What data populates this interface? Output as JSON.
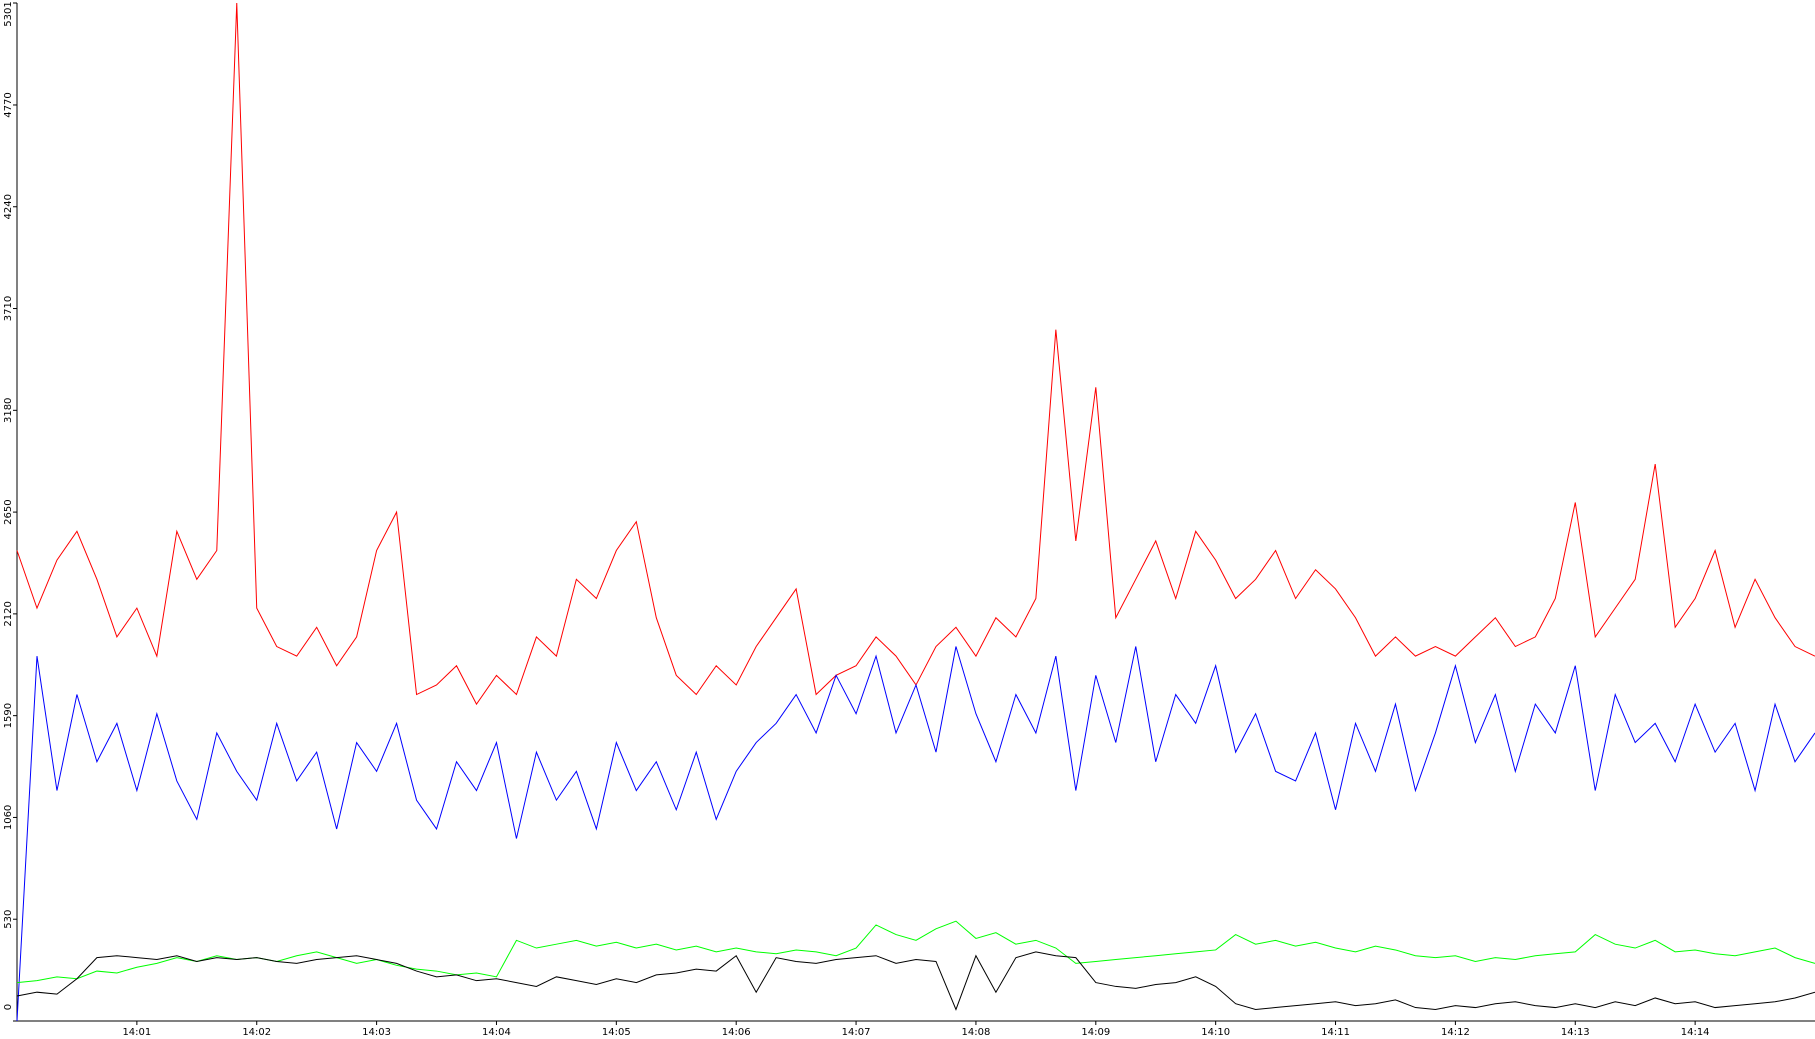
{
  "chart_data": {
    "type": "line",
    "categories": [
      null,
      null,
      null,
      null,
      null,
      null,
      "14:01",
      null,
      null,
      null,
      null,
      null,
      "14:02",
      null,
      null,
      null,
      null,
      null,
      "14:03",
      null,
      null,
      null,
      null,
      null,
      "14:04",
      null,
      null,
      null,
      null,
      null,
      "14:05",
      null,
      null,
      null,
      null,
      null,
      "14:06",
      null,
      null,
      null,
      null,
      null,
      "14:07",
      null,
      null,
      null,
      null,
      null,
      "14:08",
      null,
      null,
      null,
      null,
      null,
      "14:09",
      null,
      null,
      null,
      null,
      null,
      "14:10",
      null,
      null,
      null,
      null,
      null,
      "14:11",
      null,
      null,
      null,
      null,
      null,
      "14:12",
      null,
      null,
      null,
      null,
      null,
      "14:13",
      null,
      null,
      null,
      null,
      null,
      "14:14",
      null,
      null,
      null,
      null,
      null,
      null
    ],
    "series": [
      {
        "color": "#ff0000",
        "values": [
          2450,
          2150,
          2400,
          2550,
          2300,
          2000,
          2150,
          1900,
          2550,
          2300,
          2450,
          5301,
          2150,
          1950,
          1900,
          2050,
          1850,
          2000,
          2450,
          2650,
          1700,
          1750,
          1850,
          1650,
          1800,
          1700,
          2000,
          1900,
          2300,
          2200,
          2450,
          2600,
          2100,
          1800,
          1700,
          1850,
          1750,
          1950,
          2100,
          2250,
          1700,
          1800,
          1850,
          2000,
          1900,
          1750,
          1950,
          2050,
          1900,
          2100,
          2000,
          2200,
          3600,
          2500,
          3300,
          2100,
          2300,
          2500,
          2200,
          2550,
          2400,
          2200,
          2300,
          2450,
          2200,
          2350,
          2250,
          2100,
          1900,
          2000,
          1900,
          1950,
          1900,
          2000,
          2100,
          1950,
          2000,
          2200,
          2700,
          2000,
          2150,
          2300,
          2900,
          2050,
          2200,
          2450,
          2050,
          2300,
          2100,
          1950,
          1900
        ]
      },
      {
        "color": "#0000ff",
        "values": [
          0,
          1900,
          1200,
          1700,
          1350,
          1550,
          1200,
          1600,
          1250,
          1050,
          1500,
          1300,
          1150,
          1550,
          1250,
          1400,
          1000,
          1450,
          1300,
          1550,
          1150,
          1000,
          1350,
          1200,
          1450,
          950,
          1400,
          1150,
          1300,
          1000,
          1450,
          1200,
          1350,
          1100,
          1400,
          1050,
          1300,
          1450,
          1550,
          1700,
          1500,
          1800,
          1600,
          1900,
          1500,
          1750,
          1400,
          1950,
          1600,
          1350,
          1700,
          1500,
          1900,
          1200,
          1800,
          1450,
          1950,
          1350,
          1700,
          1550,
          1850,
          1400,
          1600,
          1300,
          1250,
          1500,
          1100,
          1550,
          1300,
          1650,
          1200,
          1500,
          1850,
          1450,
          1700,
          1300,
          1650,
          1500,
          1850,
          1200,
          1700,
          1450,
          1550,
          1350,
          1650,
          1400,
          1550,
          1200,
          1650,
          1350,
          1500
        ]
      },
      {
        "color": "#00ff00",
        "values": [
          200,
          210,
          230,
          220,
          260,
          250,
          280,
          300,
          330,
          310,
          340,
          320,
          330,
          310,
          340,
          360,
          330,
          300,
          320,
          290,
          270,
          260,
          240,
          250,
          230,
          420,
          380,
          400,
          420,
          390,
          410,
          380,
          400,
          370,
          390,
          360,
          380,
          360,
          350,
          370,
          360,
          340,
          380,
          500,
          450,
          420,
          480,
          520,
          430,
          460,
          400,
          420,
          380,
          300,
          310,
          320,
          330,
          340,
          350,
          360,
          370,
          450,
          400,
          420,
          390,
          410,
          380,
          360,
          390,
          370,
          340,
          330,
          340,
          310,
          330,
          320,
          340,
          350,
          360,
          450,
          400,
          380,
          420,
          360,
          370,
          350,
          340,
          360,
          380,
          330,
          300
        ]
      },
      {
        "color": "#000000",
        "values": [
          130,
          150,
          140,
          220,
          330,
          340,
          330,
          320,
          340,
          310,
          330,
          320,
          330,
          310,
          300,
          320,
          330,
          340,
          320,
          300,
          260,
          230,
          240,
          210,
          220,
          200,
          180,
          230,
          210,
          190,
          220,
          200,
          240,
          250,
          270,
          260,
          340,
          150,
          330,
          310,
          300,
          320,
          330,
          340,
          300,
          320,
          310,
          60,
          340,
          150,
          330,
          360,
          340,
          330,
          200,
          180,
          170,
          190,
          200,
          230,
          180,
          90,
          60,
          70,
          80,
          90,
          100,
          80,
          90,
          110,
          70,
          60,
          80,
          70,
          90,
          100,
          80,
          70,
          90,
          70,
          100,
          80,
          120,
          90,
          100,
          70,
          80,
          90,
          100,
          120,
          150
        ]
      }
    ],
    "ylim": [
      0,
      5301
    ],
    "yticks": [
      0,
      530,
      1060,
      1590,
      2120,
      2650,
      3180,
      3710,
      4240,
      4770,
      5301
    ],
    "grid": false
  }
}
